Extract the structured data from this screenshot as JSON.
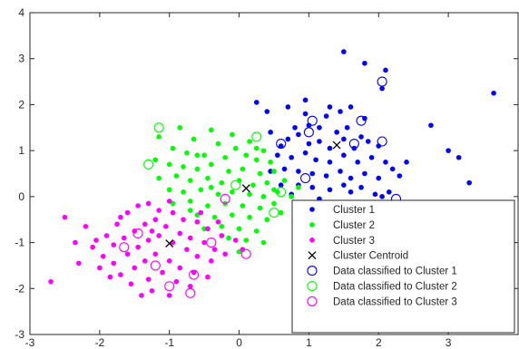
{
  "chart_data": {
    "type": "scatter",
    "xlim": [
      -3,
      4
    ],
    "ylim": [
      -3,
      4
    ],
    "x_ticks": [
      -3,
      -2,
      -1,
      0,
      1,
      2,
      3
    ],
    "y_ticks": [
      -3,
      -2,
      -1,
      0,
      1,
      2,
      3,
      4
    ],
    "grid": false,
    "legend_position": "bottom-right",
    "colors": {
      "cluster1": "#0000ff",
      "cluster2": "#00ff00",
      "cluster3": "#ff00ff",
      "centroid": "#000000"
    },
    "legend": [
      "Cluster 1",
      "Cluster 2",
      "Cluster 3",
      "Cluster Centroid",
      "Data classified to Cluster 1",
      "Data classified to Cluster 2",
      "Data classified to Cluster 3"
    ],
    "series": [
      {
        "name": "Cluster 1",
        "marker": "filled-dot",
        "points": [
          [
            1.5,
            3.15
          ],
          [
            1.8,
            2.9
          ],
          [
            2.05,
            2.35
          ],
          [
            2.1,
            2.75
          ],
          [
            3.65,
            2.25
          ],
          [
            0.25,
            2.05
          ],
          [
            0.95,
            2.1
          ],
          [
            0.95,
            1.8
          ],
          [
            1.3,
            1.95
          ],
          [
            1.45,
            1.85
          ],
          [
            1.6,
            1.95
          ],
          [
            1.8,
            1.7
          ],
          [
            0.7,
            1.95
          ],
          [
            0.4,
            1.85
          ],
          [
            1.0,
            1.55
          ],
          [
            1.25,
            1.75
          ],
          [
            1.15,
            1.5
          ],
          [
            1.4,
            1.4
          ],
          [
            1.55,
            1.5
          ],
          [
            1.75,
            1.3
          ],
          [
            2.75,
            1.55
          ],
          [
            0.45,
            1.4
          ],
          [
            0.7,
            1.25
          ],
          [
            0.85,
            1.35
          ],
          [
            1.0,
            1.15
          ],
          [
            1.15,
            1.2
          ],
          [
            1.3,
            1.05
          ],
          [
            1.5,
            1.25
          ],
          [
            1.65,
            1.05
          ],
          [
            1.85,
            1.2
          ],
          [
            2.0,
            1.1
          ],
          [
            3.0,
            1.0
          ],
          [
            3.15,
            0.85
          ],
          [
            0.55,
            0.9
          ],
          [
            0.75,
            0.85
          ],
          [
            0.95,
            0.95
          ],
          [
            1.1,
            0.8
          ],
          [
            1.3,
            0.75
          ],
          [
            1.5,
            0.9
          ],
          [
            1.7,
            0.75
          ],
          [
            1.9,
            0.85
          ],
          [
            2.1,
            0.75
          ],
          [
            2.2,
            0.6
          ],
          [
            2.4,
            0.75
          ],
          [
            0.45,
            0.55
          ],
          [
            0.65,
            0.6
          ],
          [
            0.85,
            0.55
          ],
          [
            1.05,
            0.5
          ],
          [
            1.25,
            0.45
          ],
          [
            1.45,
            0.55
          ],
          [
            1.6,
            0.4
          ],
          [
            1.8,
            0.5
          ],
          [
            2.0,
            0.4
          ],
          [
            2.3,
            0.45
          ],
          [
            0.6,
            0.25
          ],
          [
            0.85,
            0.25
          ],
          [
            1.05,
            0.2
          ],
          [
            1.3,
            0.15
          ],
          [
            1.5,
            0.25
          ],
          [
            1.75,
            0.2
          ],
          [
            1.95,
            0.05
          ],
          [
            2.15,
            0.1
          ],
          [
            3.3,
            0.3
          ],
          [
            0.75,
            0.05
          ],
          [
            1.15,
            -0.05
          ],
          [
            1.85,
            -0.15
          ],
          [
            2.05,
            0.0
          ],
          [
            0.8,
            1.5
          ],
          [
            0.6,
            1.1
          ],
          [
            1.6,
            0.1
          ]
        ]
      },
      {
        "name": "Cluster 2",
        "marker": "filled-dot",
        "points": [
          [
            -0.85,
            1.5
          ],
          [
            -0.4,
            1.45
          ],
          [
            -0.1,
            1.35
          ],
          [
            0.15,
            1.2
          ],
          [
            -1.15,
            1.3
          ],
          [
            -0.65,
            1.25
          ],
          [
            -0.3,
            1.15
          ],
          [
            -0.05,
            1.05
          ],
          [
            0.35,
            1.0
          ],
          [
            -0.95,
            1.05
          ],
          [
            -0.75,
            0.95
          ],
          [
            -0.5,
            0.9
          ],
          [
            -0.2,
            0.85
          ],
          [
            0.1,
            0.9
          ],
          [
            0.25,
            0.8
          ],
          [
            0.45,
            0.75
          ],
          [
            -1.2,
            0.8
          ],
          [
            -1.0,
            0.7
          ],
          [
            -0.8,
            0.65
          ],
          [
            -0.6,
            0.6
          ],
          [
            -0.4,
            0.7
          ],
          [
            -0.15,
            0.55
          ],
          [
            0.05,
            0.6
          ],
          [
            0.3,
            0.5
          ],
          [
            0.5,
            0.55
          ],
          [
            -1.15,
            0.4
          ],
          [
            -0.9,
            0.45
          ],
          [
            -0.7,
            0.35
          ],
          [
            -0.45,
            0.4
          ],
          [
            -0.25,
            0.3
          ],
          [
            0.0,
            0.35
          ],
          [
            0.2,
            0.25
          ],
          [
            0.4,
            0.3
          ],
          [
            0.65,
            0.35
          ],
          [
            0.85,
            0.2
          ],
          [
            -1.0,
            0.15
          ],
          [
            -0.8,
            0.1
          ],
          [
            -0.55,
            0.15
          ],
          [
            -0.3,
            0.05
          ],
          [
            -0.1,
            0.1
          ],
          [
            0.15,
            0.05
          ],
          [
            0.35,
            0.0
          ],
          [
            0.55,
            0.1
          ],
          [
            0.75,
            0.0
          ],
          [
            -0.95,
            -0.15
          ],
          [
            -0.7,
            -0.1
          ],
          [
            -0.45,
            -0.2
          ],
          [
            -0.2,
            -0.15
          ],
          [
            0.05,
            -0.2
          ],
          [
            0.3,
            -0.25
          ],
          [
            0.5,
            -0.15
          ],
          [
            -0.6,
            -0.4
          ],
          [
            -0.35,
            -0.45
          ],
          [
            -0.1,
            -0.4
          ],
          [
            0.15,
            -0.45
          ],
          [
            0.4,
            -0.5
          ],
          [
            -0.5,
            -0.7
          ],
          [
            -0.25,
            -0.65
          ],
          [
            0.0,
            -0.7
          ],
          [
            0.25,
            -0.75
          ],
          [
            -0.7,
            -0.3
          ],
          [
            0.6,
            -0.35
          ],
          [
            -0.15,
            -0.9
          ],
          [
            0.1,
            -0.95
          ],
          [
            0.35,
            -1.0
          ],
          [
            0.0,
            -1.2
          ],
          [
            -0.4,
            0.2
          ],
          [
            0.25,
            1.05
          ],
          [
            -0.6,
            0.9
          ],
          [
            0.5,
            0.15
          ]
        ]
      },
      {
        "name": "Cluster 3",
        "marker": "filled-dot",
        "points": [
          [
            -2.5,
            -0.45
          ],
          [
            -2.2,
            -0.65
          ],
          [
            -2.05,
            -0.95
          ],
          [
            -1.9,
            -0.85
          ],
          [
            -1.75,
            -0.6
          ],
          [
            -1.6,
            -0.35
          ],
          [
            -1.45,
            -0.2
          ],
          [
            -1.3,
            -0.15
          ],
          [
            -1.15,
            -0.3
          ],
          [
            -0.95,
            -0.35
          ],
          [
            -0.8,
            -0.5
          ],
          [
            -0.6,
            -0.55
          ],
          [
            -0.45,
            -0.7
          ],
          [
            -0.25,
            -0.85
          ],
          [
            -2.1,
            -1.1
          ],
          [
            -1.95,
            -1.3
          ],
          [
            -1.8,
            -1.05
          ],
          [
            -1.65,
            -0.9
          ],
          [
            -1.5,
            -0.75
          ],
          [
            -1.35,
            -0.6
          ],
          [
            -1.2,
            -0.5
          ],
          [
            -1.05,
            -0.65
          ],
          [
            -0.85,
            -0.8
          ],
          [
            -0.7,
            -0.9
          ],
          [
            -0.5,
            -1.0
          ],
          [
            -0.35,
            -1.15
          ],
          [
            -2.0,
            -1.55
          ],
          [
            -1.8,
            -1.45
          ],
          [
            -1.6,
            -1.25
          ],
          [
            -1.45,
            -1.1
          ],
          [
            -1.3,
            -0.95
          ],
          [
            -1.15,
            -0.85
          ],
          [
            -0.95,
            -1.0
          ],
          [
            -0.75,
            -1.15
          ],
          [
            -0.6,
            -1.3
          ],
          [
            -0.4,
            -1.4
          ],
          [
            -0.2,
            -1.25
          ],
          [
            -1.7,
            -1.7
          ],
          [
            -1.5,
            -1.55
          ],
          [
            -1.35,
            -1.4
          ],
          [
            -1.2,
            -1.25
          ],
          [
            -1.0,
            -1.4
          ],
          [
            -0.85,
            -1.55
          ],
          [
            -0.65,
            -1.65
          ],
          [
            -0.45,
            -1.75
          ],
          [
            -1.55,
            -1.9
          ],
          [
            -1.3,
            -1.8
          ],
          [
            -1.1,
            -1.65
          ],
          [
            -0.9,
            -1.85
          ],
          [
            -0.7,
            -1.95
          ],
          [
            -1.25,
            -2.05
          ],
          [
            -1.0,
            -2.15
          ],
          [
            -2.7,
            -1.85
          ],
          [
            -2.3,
            -1.45
          ],
          [
            -1.4,
            -2.15
          ],
          [
            -0.05,
            -0.95
          ],
          [
            0.05,
            -1.15
          ],
          [
            -2.35,
            -1.0
          ],
          [
            -1.85,
            -1.75
          ],
          [
            -0.55,
            -0.35
          ],
          [
            -1.0,
            -0.1
          ],
          [
            -1.7,
            -0.45
          ],
          [
            -1.25,
            -0.75
          ],
          [
            -0.3,
            -0.55
          ]
        ]
      },
      {
        "name": "Cluster Centroid",
        "marker": "x",
        "points": [
          [
            1.4,
            1.12
          ],
          [
            0.1,
            0.18
          ],
          [
            -1.0,
            -1.02
          ]
        ]
      },
      {
        "name": "Data classified to Cluster 1",
        "marker": "open-circle",
        "points": [
          [
            2.05,
            2.5
          ],
          [
            1.05,
            1.65
          ],
          [
            1.0,
            1.4
          ],
          [
            1.75,
            1.65
          ],
          [
            0.6,
            1.15
          ],
          [
            2.05,
            1.2
          ],
          [
            1.65,
            1.15
          ],
          [
            0.95,
            0.4
          ],
          [
            2.25,
            -0.05
          ]
        ]
      },
      {
        "name": "Data classified to Cluster 2",
        "marker": "open-circle",
        "points": [
          [
            -1.15,
            1.5
          ],
          [
            -1.3,
            0.7
          ],
          [
            0.25,
            1.3
          ],
          [
            0.6,
            0.1
          ],
          [
            -0.05,
            0.25
          ],
          [
            0.5,
            -0.35
          ]
        ]
      },
      {
        "name": "Data classified to Cluster 3",
        "marker": "open-circle",
        "points": [
          [
            -0.2,
            -0.05
          ],
          [
            -1.65,
            -1.1
          ],
          [
            -1.45,
            -0.8
          ],
          [
            -1.2,
            -1.5
          ],
          [
            -0.65,
            -1.7
          ],
          [
            -0.7,
            -2.1
          ],
          [
            0.1,
            -1.25
          ],
          [
            -0.4,
            -1.0
          ],
          [
            -1.0,
            -1.95
          ]
        ]
      }
    ]
  }
}
